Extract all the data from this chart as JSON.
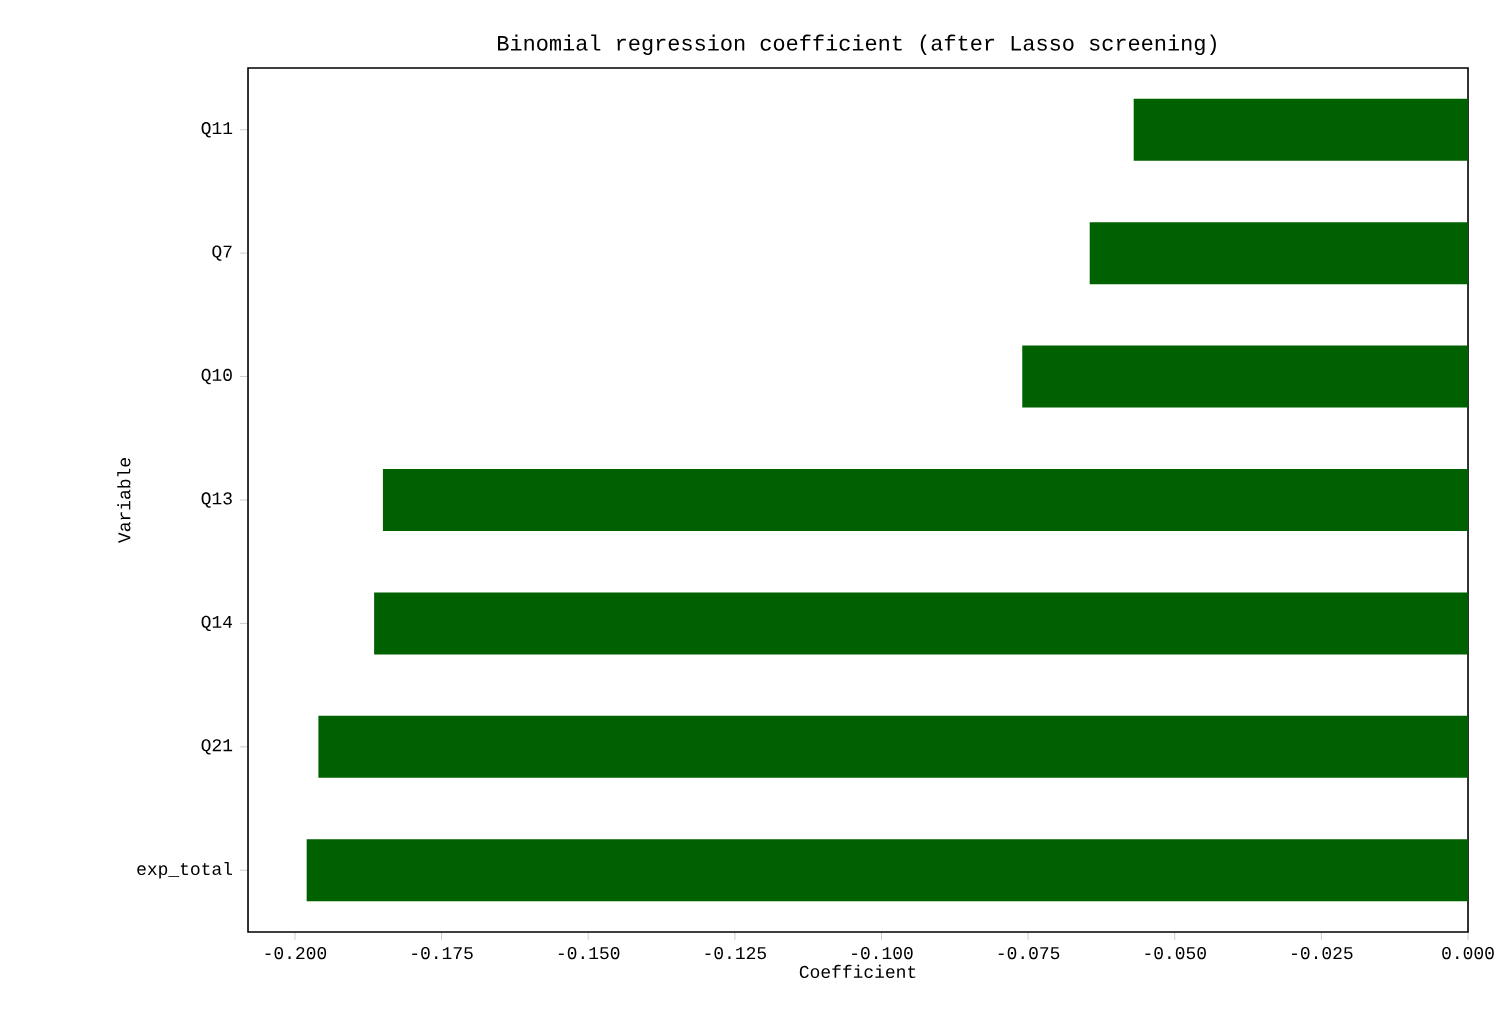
{
  "chart_data": {
    "type": "bar",
    "orientation": "horizontal",
    "title": "Binomial regression coefficient (after Lasso screening)",
    "xlabel": "Coefficient",
    "ylabel": "Variable",
    "categories": [
      "Q11",
      "Q7",
      "Q10",
      "Q13",
      "Q14",
      "Q21",
      "exp_total"
    ],
    "values": [
      -0.057,
      -0.0645,
      -0.076,
      -0.185,
      -0.1865,
      -0.196,
      -0.198
    ],
    "color": "#006100",
    "xlim": [
      -0.208,
      0.0
    ],
    "xticks": [
      {
        "value": -0.2,
        "label": "-0.200"
      },
      {
        "value": -0.175,
        "label": "-0.175"
      },
      {
        "value": -0.15,
        "label": "-0.150"
      },
      {
        "value": -0.125,
        "label": "-0.125"
      },
      {
        "value": -0.1,
        "label": "-0.100"
      },
      {
        "value": -0.075,
        "label": "-0.075"
      },
      {
        "value": -0.05,
        "label": "-0.050"
      },
      {
        "value": -0.025,
        "label": "-0.025"
      },
      {
        "value": 0.0,
        "label": "0.000"
      }
    ]
  }
}
